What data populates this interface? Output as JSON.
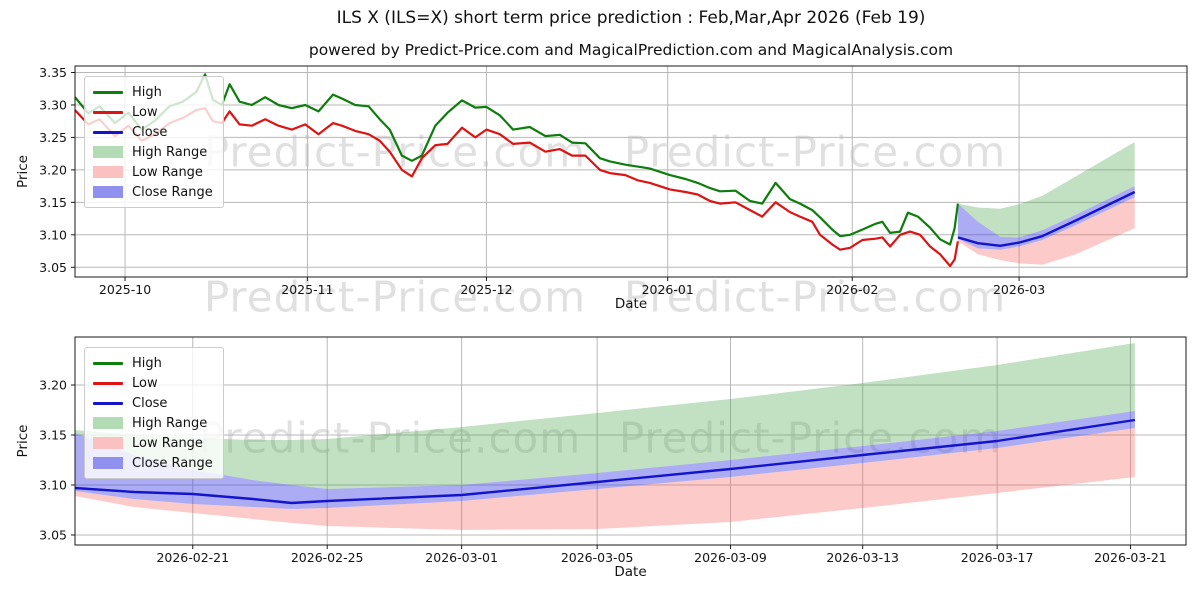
{
  "header": {
    "title": "ILS X (ILS=X) short term price prediction : Feb,Mar,Apr 2026 (Feb 19)",
    "subtitle": "powered by Predict-Price.com and MagicalPrediction.com and MagicalAnalysis.com"
  },
  "watermark": {
    "text": "Predict-Price.com"
  },
  "colors": {
    "high_line": "#0e7d0e",
    "low_line": "#dc1414",
    "close_line": "#1414cc",
    "high_range_fill": "rgba(80,170,80,0.35)",
    "low_range_fill": "rgba(250,95,95,0.33)",
    "close_range_fill": "rgba(70,70,230,0.45)",
    "legend_high_range": "#b4dcb4",
    "legend_low_range": "#fbc0c0",
    "legend_close_range": "#9090ee",
    "grid": "#b8b8b8",
    "spine": "#1a1a1a",
    "tick_text": "#141414"
  },
  "legend": {
    "items": [
      {
        "key": "high",
        "label": "High",
        "type": "line"
      },
      {
        "key": "low",
        "label": "Low",
        "type": "line"
      },
      {
        "key": "close",
        "label": "Close",
        "type": "line"
      },
      {
        "key": "high_range",
        "label": "High Range",
        "type": "patch"
      },
      {
        "key": "low_range",
        "label": "Low Range",
        "type": "patch"
      },
      {
        "key": "close_range",
        "label": "Close Range",
        "type": "patch"
      }
    ]
  },
  "chart_data": [
    {
      "type": "line",
      "name": "history-and-prediction",
      "xlabel": "Date",
      "ylabel": "Price",
      "ylim": [
        3.035,
        3.36
      ],
      "grid": true,
      "legend_position": "upper-left",
      "y_ticks": [
        {
          "v": 3.05,
          "label": "3.05"
        },
        {
          "v": 3.1,
          "label": "3.10"
        },
        {
          "v": 3.15,
          "label": "3.15"
        },
        {
          "v": 3.2,
          "label": "3.20"
        },
        {
          "v": 3.25,
          "label": "3.25"
        },
        {
          "v": 3.3,
          "label": "3.30"
        },
        {
          "v": 3.35,
          "label": "3.35"
        }
      ],
      "x_ticks": [
        {
          "f": 0.045,
          "label": "2025-10"
        },
        {
          "f": 0.209,
          "label": "2025-11"
        },
        {
          "f": 0.37,
          "label": "2025-12"
        },
        {
          "f": 0.533,
          "label": "2026-01"
        },
        {
          "f": 0.699,
          "label": "2026-02"
        },
        {
          "f": 0.849,
          "label": "2026-03"
        }
      ],
      "series": {
        "high": [
          [
            0.0,
            3.312
          ],
          [
            0.012,
            3.287
          ],
          [
            0.022,
            3.298
          ],
          [
            0.036,
            3.272
          ],
          [
            0.048,
            3.288
          ],
          [
            0.06,
            3.262
          ],
          [
            0.072,
            3.276
          ],
          [
            0.085,
            3.298
          ],
          [
            0.097,
            3.305
          ],
          [
            0.109,
            3.32
          ],
          [
            0.117,
            3.347
          ],
          [
            0.124,
            3.308
          ],
          [
            0.132,
            3.3
          ],
          [
            0.139,
            3.332
          ],
          [
            0.148,
            3.305
          ],
          [
            0.159,
            3.3
          ],
          [
            0.171,
            3.312
          ],
          [
            0.183,
            3.3
          ],
          [
            0.195,
            3.295
          ],
          [
            0.207,
            3.3
          ],
          [
            0.219,
            3.29
          ],
          [
            0.232,
            3.316
          ],
          [
            0.24,
            3.31
          ],
          [
            0.252,
            3.3
          ],
          [
            0.264,
            3.298
          ],
          [
            0.274,
            3.278
          ],
          [
            0.283,
            3.262
          ],
          [
            0.294,
            3.222
          ],
          [
            0.303,
            3.214
          ],
          [
            0.312,
            3.222
          ],
          [
            0.324,
            3.268
          ],
          [
            0.335,
            3.288
          ],
          [
            0.348,
            3.307
          ],
          [
            0.36,
            3.296
          ],
          [
            0.37,
            3.297
          ],
          [
            0.382,
            3.284
          ],
          [
            0.394,
            3.262
          ],
          [
            0.409,
            3.266
          ],
          [
            0.423,
            3.252
          ],
          [
            0.436,
            3.254
          ],
          [
            0.447,
            3.242
          ],
          [
            0.459,
            3.241
          ],
          [
            0.472,
            3.218
          ],
          [
            0.481,
            3.213
          ],
          [
            0.495,
            3.208
          ],
          [
            0.506,
            3.205
          ],
          [
            0.517,
            3.202
          ],
          [
            0.535,
            3.192
          ],
          [
            0.549,
            3.186
          ],
          [
            0.56,
            3.18
          ],
          [
            0.571,
            3.172
          ],
          [
            0.58,
            3.167
          ],
          [
            0.594,
            3.168
          ],
          [
            0.607,
            3.152
          ],
          [
            0.618,
            3.148
          ],
          [
            0.63,
            3.18
          ],
          [
            0.643,
            3.155
          ],
          [
            0.652,
            3.148
          ],
          [
            0.663,
            3.138
          ],
          [
            0.67,
            3.127
          ],
          [
            0.681,
            3.108
          ],
          [
            0.688,
            3.098
          ],
          [
            0.697,
            3.1
          ],
          [
            0.708,
            3.108
          ],
          [
            0.72,
            3.117
          ],
          [
            0.726,
            3.12
          ],
          [
            0.733,
            3.103
          ],
          [
            0.742,
            3.105
          ],
          [
            0.749,
            3.134
          ],
          [
            0.758,
            3.128
          ],
          [
            0.769,
            3.111
          ],
          [
            0.778,
            3.093
          ],
          [
            0.787,
            3.085
          ],
          [
            0.791,
            3.11
          ],
          [
            0.794,
            3.148
          ]
        ],
        "low": [
          [
            0.0,
            3.292
          ],
          [
            0.012,
            3.27
          ],
          [
            0.022,
            3.278
          ],
          [
            0.036,
            3.252
          ],
          [
            0.048,
            3.268
          ],
          [
            0.06,
            3.245
          ],
          [
            0.072,
            3.255
          ],
          [
            0.085,
            3.272
          ],
          [
            0.097,
            3.28
          ],
          [
            0.109,
            3.292
          ],
          [
            0.117,
            3.295
          ],
          [
            0.124,
            3.275
          ],
          [
            0.132,
            3.272
          ],
          [
            0.139,
            3.29
          ],
          [
            0.148,
            3.27
          ],
          [
            0.159,
            3.268
          ],
          [
            0.171,
            3.278
          ],
          [
            0.183,
            3.268
          ],
          [
            0.195,
            3.262
          ],
          [
            0.207,
            3.27
          ],
          [
            0.219,
            3.255
          ],
          [
            0.232,
            3.272
          ],
          [
            0.24,
            3.268
          ],
          [
            0.252,
            3.26
          ],
          [
            0.264,
            3.255
          ],
          [
            0.274,
            3.245
          ],
          [
            0.283,
            3.228
          ],
          [
            0.294,
            3.2
          ],
          [
            0.303,
            3.19
          ],
          [
            0.312,
            3.218
          ],
          [
            0.324,
            3.238
          ],
          [
            0.335,
            3.24
          ],
          [
            0.348,
            3.265
          ],
          [
            0.36,
            3.25
          ],
          [
            0.37,
            3.262
          ],
          [
            0.382,
            3.255
          ],
          [
            0.394,
            3.24
          ],
          [
            0.409,
            3.242
          ],
          [
            0.423,
            3.228
          ],
          [
            0.436,
            3.232
          ],
          [
            0.447,
            3.222
          ],
          [
            0.459,
            3.222
          ],
          [
            0.472,
            3.2
          ],
          [
            0.481,
            3.195
          ],
          [
            0.495,
            3.192
          ],
          [
            0.506,
            3.184
          ],
          [
            0.517,
            3.18
          ],
          [
            0.535,
            3.17
          ],
          [
            0.549,
            3.166
          ],
          [
            0.56,
            3.162
          ],
          [
            0.571,
            3.152
          ],
          [
            0.58,
            3.148
          ],
          [
            0.594,
            3.15
          ],
          [
            0.607,
            3.138
          ],
          [
            0.618,
            3.128
          ],
          [
            0.63,
            3.15
          ],
          [
            0.643,
            3.135
          ],
          [
            0.652,
            3.128
          ],
          [
            0.663,
            3.12
          ],
          [
            0.67,
            3.1
          ],
          [
            0.681,
            3.085
          ],
          [
            0.688,
            3.077
          ],
          [
            0.697,
            3.08
          ],
          [
            0.708,
            3.092
          ],
          [
            0.72,
            3.094
          ],
          [
            0.726,
            3.096
          ],
          [
            0.733,
            3.082
          ],
          [
            0.742,
            3.1
          ],
          [
            0.751,
            3.105
          ],
          [
            0.76,
            3.1
          ],
          [
            0.769,
            3.082
          ],
          [
            0.778,
            3.07
          ],
          [
            0.787,
            3.052
          ],
          [
            0.791,
            3.062
          ],
          [
            0.794,
            3.09
          ]
        ]
      },
      "prediction": {
        "columns": [
          "x_frac",
          "high_top",
          "close_top",
          "close",
          "close_bot",
          "low_bot"
        ],
        "points": [
          [
            0.794,
            3.148,
            3.148,
            3.096,
            3.094,
            3.09
          ],
          [
            0.812,
            3.142,
            3.12,
            3.087,
            3.079,
            3.07
          ],
          [
            0.832,
            3.14,
            3.097,
            3.083,
            3.077,
            3.061
          ],
          [
            0.849,
            3.147,
            3.096,
            3.088,
            3.082,
            3.056
          ],
          [
            0.87,
            3.16,
            3.107,
            3.098,
            3.092,
            3.054
          ],
          [
            0.9,
            3.19,
            3.131,
            3.122,
            3.115,
            3.07
          ],
          [
            0.953,
            3.243,
            3.175,
            3.166,
            3.158,
            3.11
          ]
        ]
      }
    },
    {
      "type": "line",
      "name": "prediction-zoom",
      "xlabel": "Date",
      "ylabel": "Price",
      "ylim": [
        3.04,
        3.248
      ],
      "grid": true,
      "legend_position": "upper-left",
      "y_ticks": [
        {
          "v": 3.05,
          "label": "3.05"
        },
        {
          "v": 3.1,
          "label": "3.10"
        },
        {
          "v": 3.15,
          "label": "3.15"
        },
        {
          "v": 3.2,
          "label": "3.20"
        }
      ],
      "x_ticks": [
        {
          "f": 0.106,
          "label": "2026-02-21"
        },
        {
          "f": 0.227,
          "label": "2026-02-25"
        },
        {
          "f": 0.348,
          "label": "2026-03-01"
        },
        {
          "f": 0.47,
          "label": "2026-03-05"
        },
        {
          "f": 0.59,
          "label": "2026-03-09"
        },
        {
          "f": 0.709,
          "label": "2026-03-13"
        },
        {
          "f": 0.83,
          "label": "2026-03-17"
        },
        {
          "f": 0.95,
          "label": "2026-03-21"
        }
      ],
      "series": {
        "high": [],
        "low": []
      },
      "prediction": {
        "columns": [
          "x_frac",
          "high_top",
          "close_top",
          "close",
          "close_bot",
          "low_bot"
        ],
        "points": [
          [
            0.0,
            3.155,
            3.152,
            3.097,
            3.094,
            3.089
          ],
          [
            0.053,
            3.15,
            3.13,
            3.093,
            3.086,
            3.078
          ],
          [
            0.106,
            3.147,
            3.115,
            3.091,
            3.081,
            3.072
          ],
          [
            0.16,
            3.145,
            3.105,
            3.086,
            3.078,
            3.066
          ],
          [
            0.195,
            3.145,
            3.1,
            3.082,
            3.076,
            3.062
          ],
          [
            0.227,
            3.146,
            3.096,
            3.084,
            3.077,
            3.059
          ],
          [
            0.348,
            3.158,
            3.1,
            3.09,
            3.084,
            3.055
          ],
          [
            0.47,
            3.172,
            3.112,
            3.103,
            3.096,
            3.056
          ],
          [
            0.59,
            3.186,
            3.125,
            3.116,
            3.108,
            3.063
          ],
          [
            0.709,
            3.202,
            3.139,
            3.13,
            3.122,
            3.077
          ],
          [
            0.83,
            3.22,
            3.154,
            3.144,
            3.137,
            3.092
          ],
          [
            0.954,
            3.242,
            3.174,
            3.165,
            3.157,
            3.108
          ]
        ]
      }
    }
  ]
}
